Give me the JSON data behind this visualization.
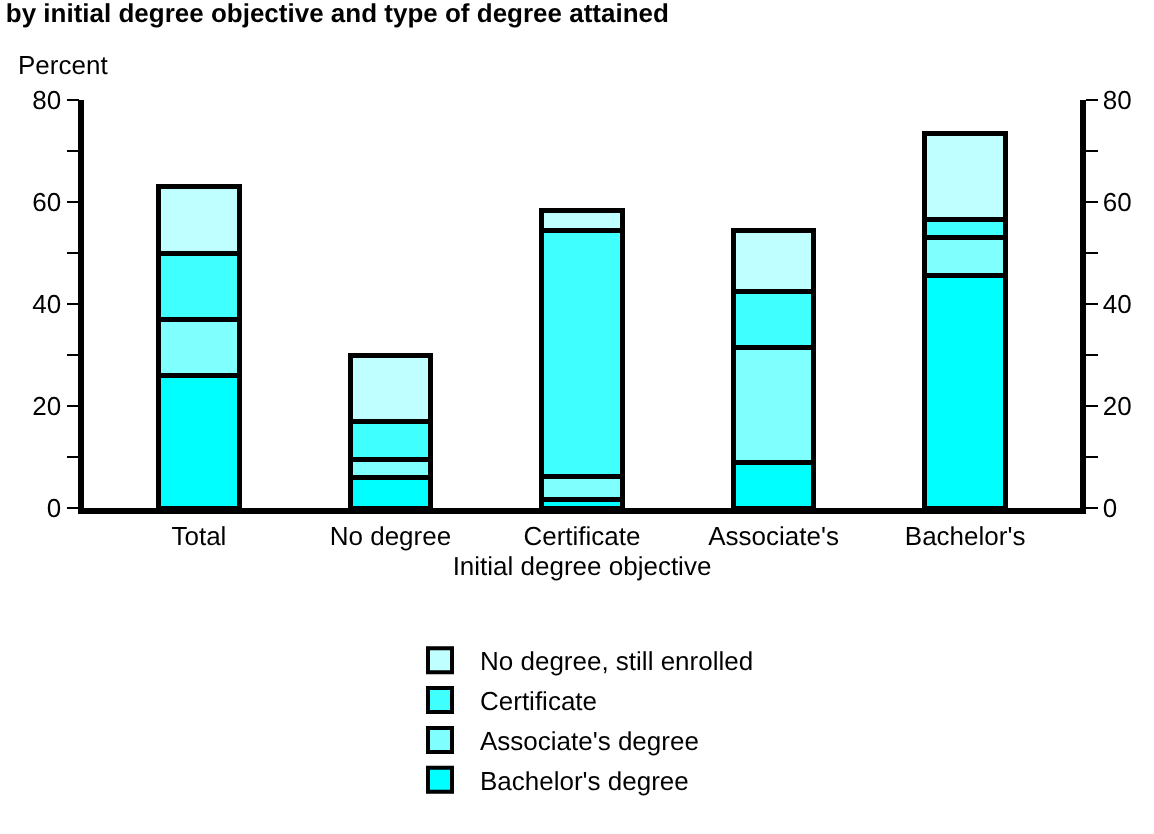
{
  "chart_data": {
    "type": "bar",
    "title": "by initial degree objective and type of degree attained",
    "ylabel": "Percent",
    "xlabel": "Initial degree objective",
    "categories": [
      "Total",
      "No degree",
      "Certificate",
      "Associate's",
      "Bachelor's"
    ],
    "stacked": true,
    "series": [
      {
        "name": "Bachelor's degree",
        "color": "#00ffff",
        "values": [
          26,
          6,
          1.7,
          9,
          45.5
        ]
      },
      {
        "name": "Associate's degree",
        "color": "#80ffff",
        "values": [
          11,
          3.5,
          4.5,
          22.5,
          7.5
        ]
      },
      {
        "name": "Certificate",
        "color": "#40ffff",
        "values": [
          13,
          7.5,
          48.3,
          11,
          3.5
        ]
      },
      {
        "name": "No degree, still enrolled",
        "color": "#c0ffff",
        "values": [
          13,
          13,
          3.8,
          12,
          17
        ]
      }
    ],
    "ylim": [
      0,
      80
    ],
    "yticks": [
      0,
      {
        "value": 10,
        "label": null
      },
      20,
      {
        "value": 30,
        "label": null
      },
      40,
      {
        "value": 50,
        "label": null
      },
      60,
      {
        "value": 70,
        "label": null
      },
      80
    ],
    "y2lim": [
      0,
      80
    ],
    "y2ticks": [
      0,
      {
        "value": 10,
        "label": null
      },
      20,
      {
        "value": 30,
        "label": null
      },
      40,
      {
        "value": 50,
        "label": null
      },
      60,
      {
        "value": 70,
        "label": null
      },
      80
    ],
    "legend": "bottom"
  }
}
